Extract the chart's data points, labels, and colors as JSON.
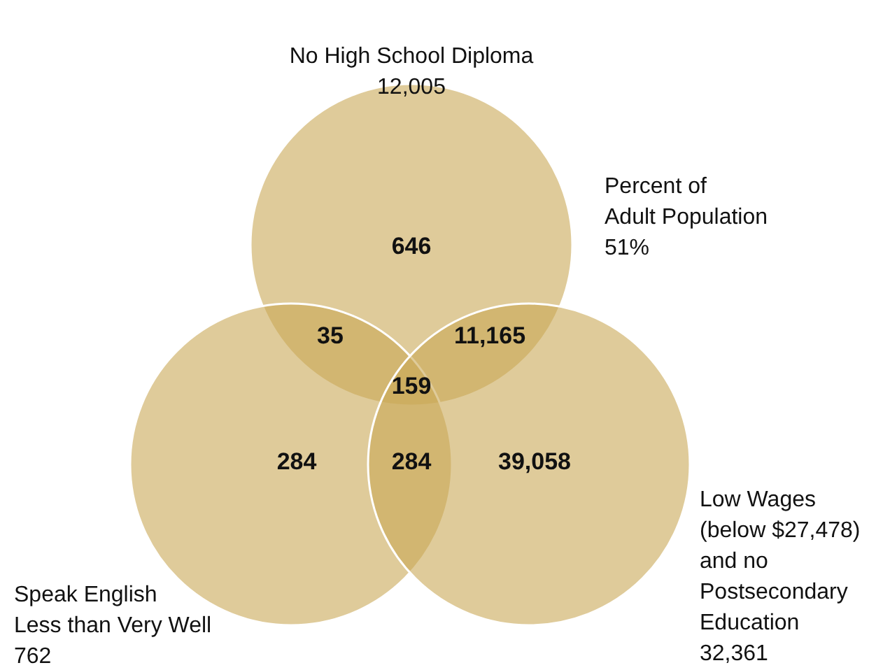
{
  "chart_data": {
    "type": "other",
    "categories": [
      "No High School Diploma",
      "Speak English\nLess than Very Well",
      "Low Wages\n(below $27,478)\nand no\nPostsecondary\nEducation"
    ],
    "values": [
      12005,
      762,
      32361
    ],
    "value_labels": [
      "12,005",
      "762",
      "32,361"
    ],
    "colors": [
      "#c9a857",
      "#c9a857",
      "#c9a857"
    ],
    "annotations": [
      "646",
      "284",
      "39,058",
      "35",
      "11,165",
      "284",
      "159",
      "Percent of\nAdult Population\n51%"
    ]
  }
}
